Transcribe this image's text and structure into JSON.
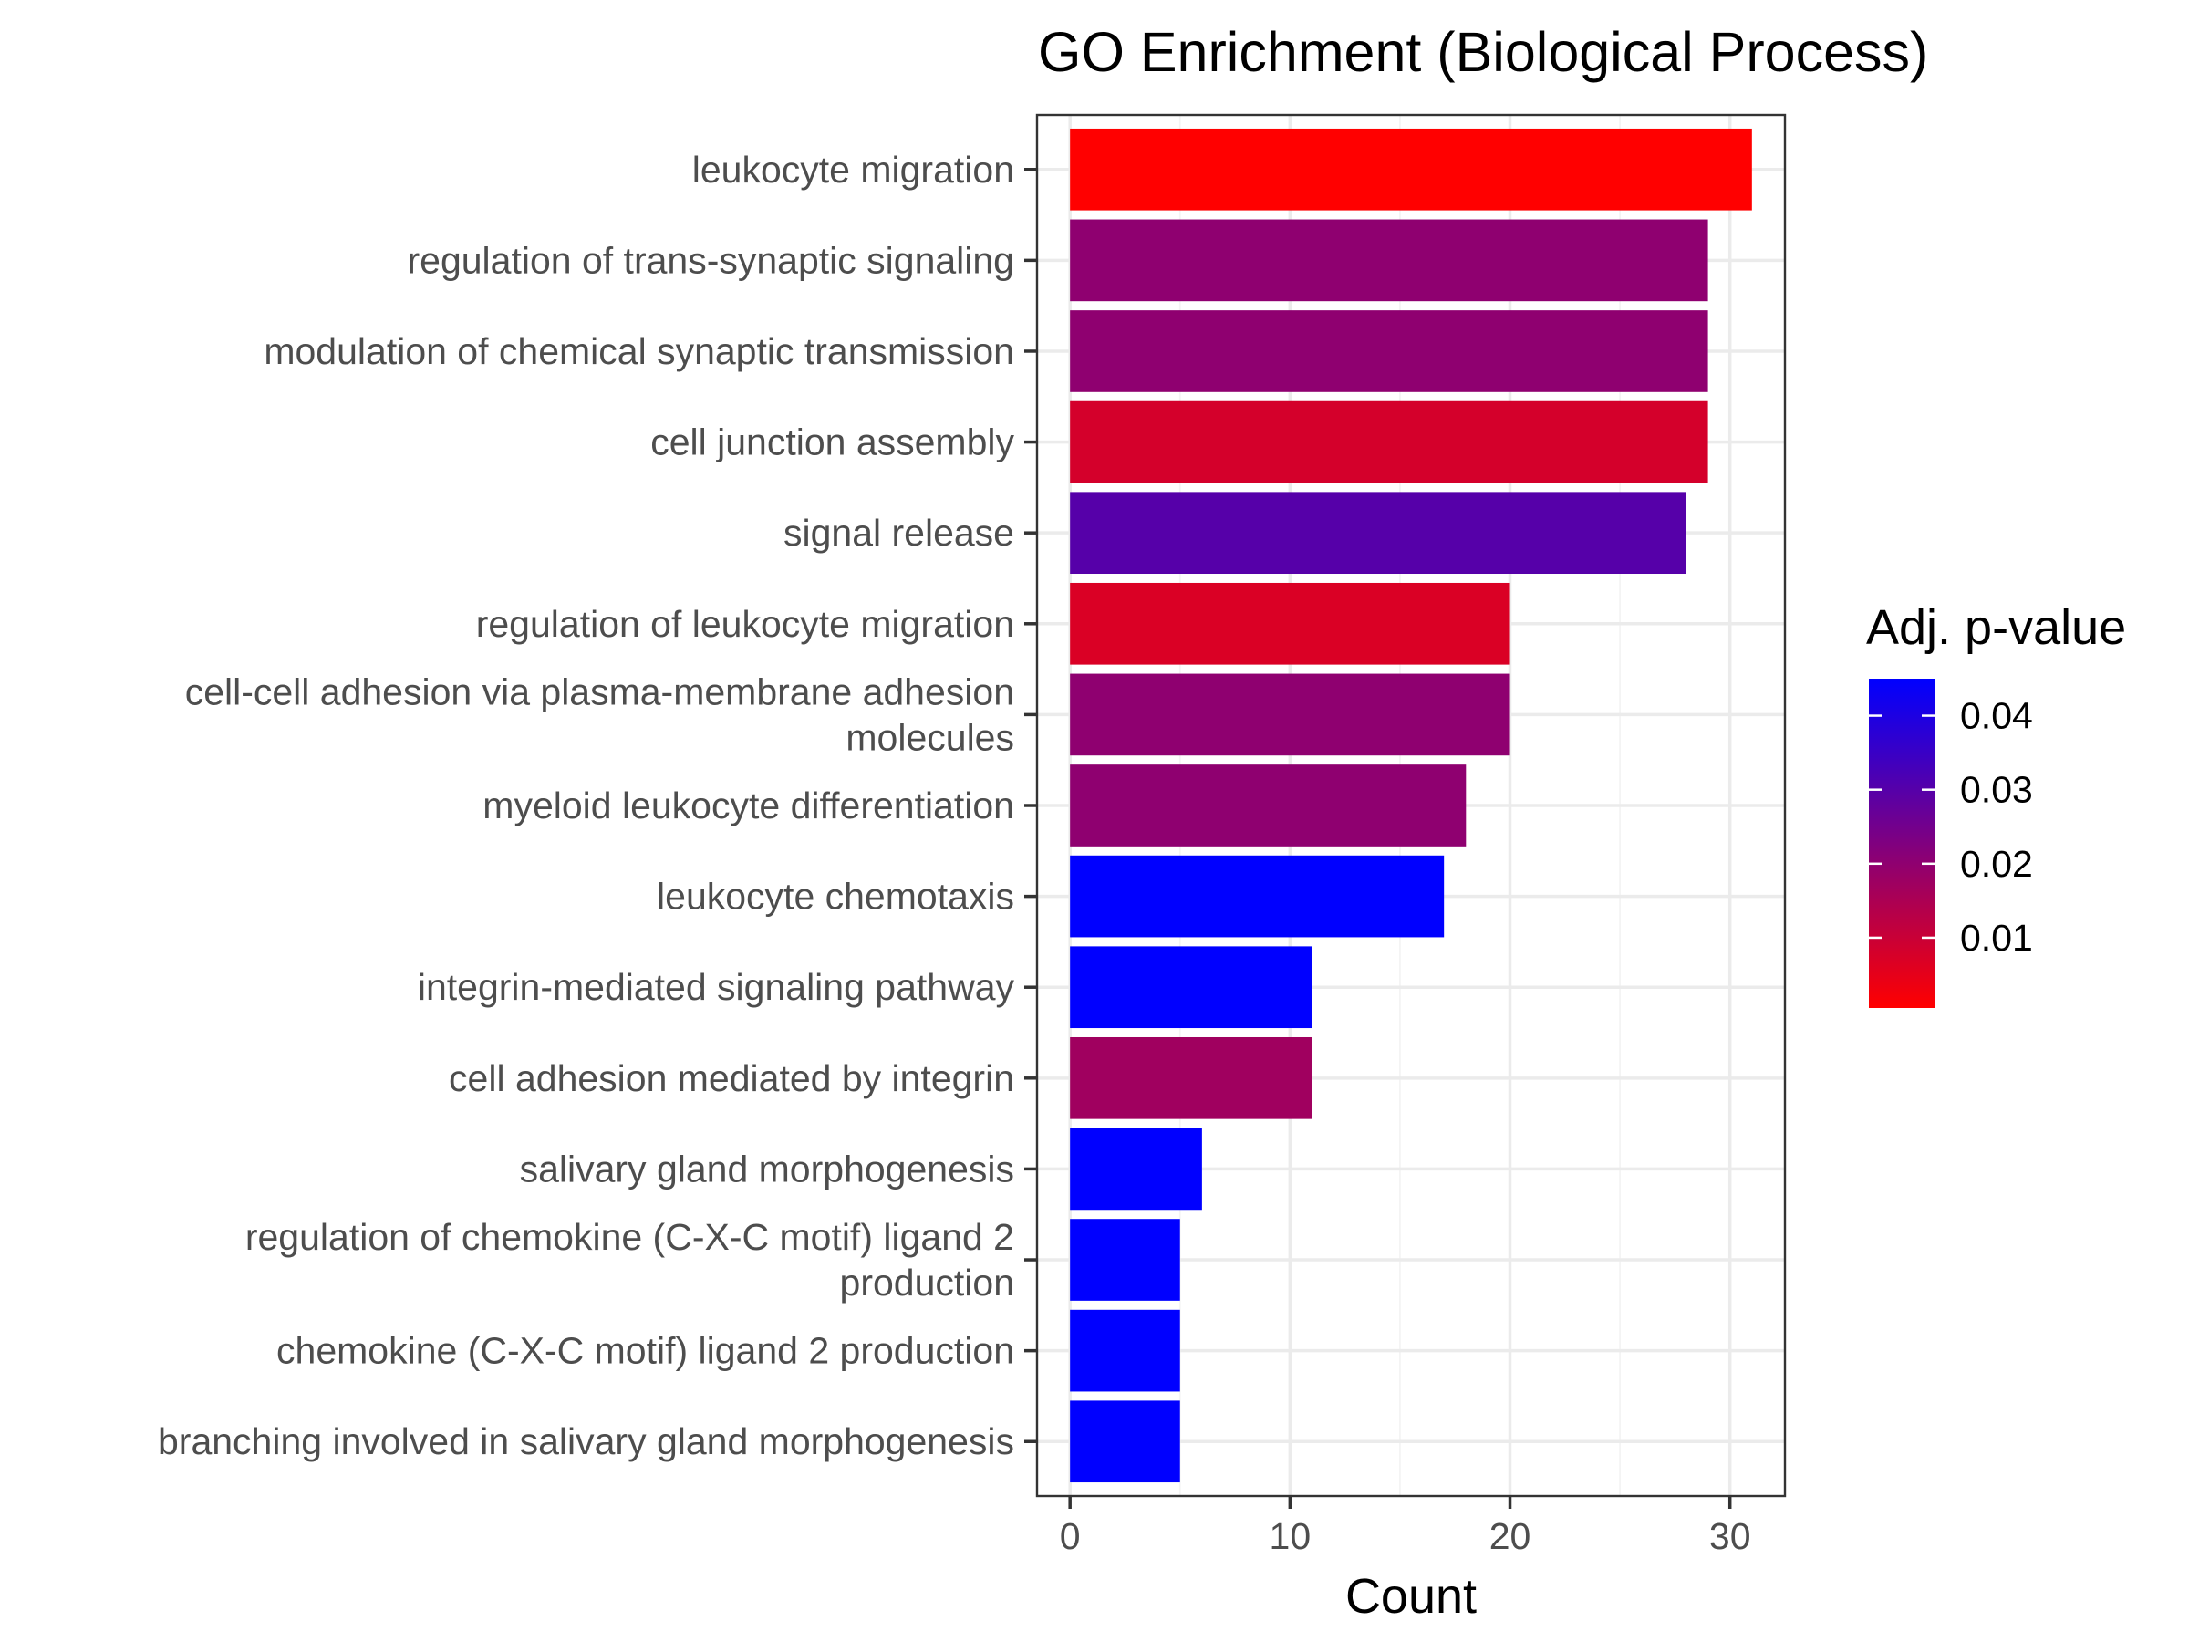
{
  "chart_data": {
    "type": "bar",
    "orientation": "horizontal",
    "title": "GO Enrichment (Biological Process)",
    "xlabel": "Count",
    "ylabel": "",
    "xlim": [
      -1.5,
      32.5
    ],
    "xticks": [
      0,
      10,
      20,
      30
    ],
    "grid": true,
    "categories": [
      [
        "leukocyte migration"
      ],
      [
        "regulation of trans-synaptic signaling"
      ],
      [
        "modulation of chemical synaptic transmission"
      ],
      [
        "cell junction assembly"
      ],
      [
        "signal release"
      ],
      [
        "regulation of leukocyte migration"
      ],
      [
        "cell-cell adhesion via plasma-membrane adhesion",
        "molecules"
      ],
      [
        "myeloid leukocyte differentiation"
      ],
      [
        "leukocyte chemotaxis"
      ],
      [
        "integrin-mediated signaling pathway"
      ],
      [
        "cell adhesion mediated by integrin"
      ],
      [
        "salivary gland morphogenesis"
      ],
      [
        "regulation of chemokine (C-X-C motif) ligand 2",
        "production"
      ],
      [
        "chemokine (C-X-C motif) ligand 2 production"
      ],
      [
        "branching involved in salivary gland morphogenesis"
      ]
    ],
    "values": [
      31,
      29,
      29,
      29,
      28,
      20,
      20,
      18,
      17,
      11,
      11,
      6,
      5,
      5,
      5
    ],
    "adj_p_values": [
      0.0005,
      0.02,
      0.02,
      0.008,
      0.03,
      0.007,
      0.02,
      0.02,
      0.045,
      0.045,
      0.017,
      0.045,
      0.045,
      0.045,
      0.045
    ],
    "legend": {
      "title": "Adj. p-value",
      "position": "right",
      "ticks": [
        0.04,
        0.03,
        0.02,
        0.01
      ],
      "range": [
        0.0005,
        0.045
      ],
      "low_color": "#ff0000",
      "high_color": "#0000ff"
    }
  }
}
